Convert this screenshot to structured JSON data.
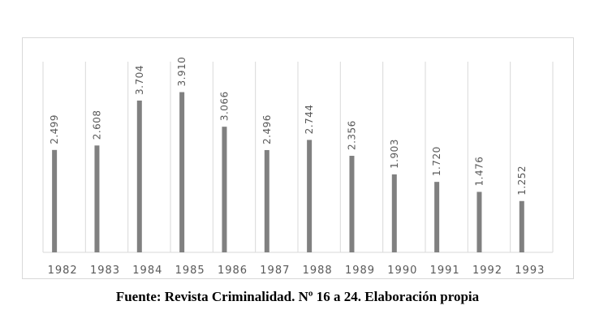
{
  "caption": "Fuente: Revista Criminalidad. Nº 16 a 24. Elaboración propia",
  "chart_data": {
    "type": "bar",
    "categories": [
      "1982",
      "1983",
      "1984",
      "1985",
      "1986",
      "1987",
      "1988",
      "1989",
      "1990",
      "1991",
      "1992",
      "1993"
    ],
    "values": [
      2.499,
      2.608,
      3.704,
      3.91,
      3.066,
      2.496,
      2.744,
      2.356,
      1.903,
      1.72,
      1.476,
      1.252
    ],
    "value_labels": [
      "2.499",
      "2.608",
      "3.704",
      "3.910",
      "3.066",
      "2.496",
      "2.744",
      "2.356",
      "1.903",
      "1.720",
      "1.476",
      "1.252"
    ],
    "title": "",
    "xlabel": "",
    "ylabel": "",
    "ylim": [
      0,
      4.2
    ],
    "grid": "vertical category separators",
    "legend": "none",
    "bar_color": "#808080",
    "gridline_color": "#d9d9d9"
  }
}
